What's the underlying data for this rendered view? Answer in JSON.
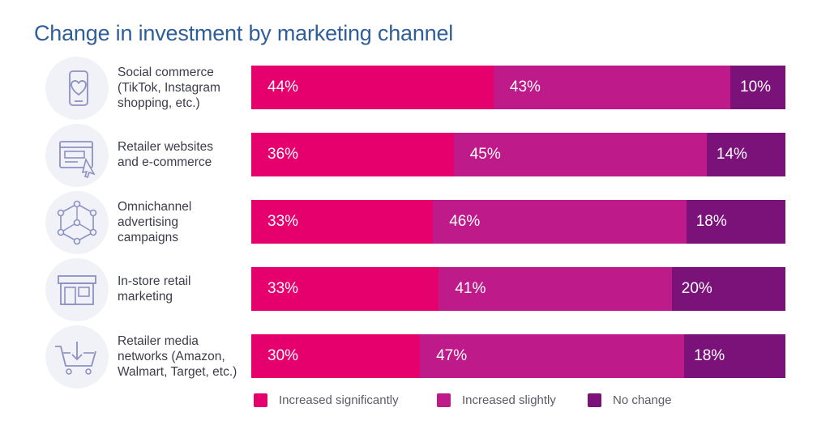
{
  "title": "Change in investment by marketing channel",
  "colors": {
    "increased_significantly": "#e6006e",
    "increased_slightly": "#bf1a8a",
    "no_change": "#7b127a",
    "title": "#2f5f9a",
    "icon_bg": "#f1f2f8",
    "icon_stroke": "#8d90c2"
  },
  "rows": [
    {
      "label": "Social commerce\n(TikTok, Instagram\nshopping, etc.)",
      "icon": "phone-heart-icon"
    },
    {
      "label": "Retailer websites\nand e-commerce",
      "icon": "browser-cursor-icon"
    },
    {
      "label": "Omnichannel\nadvertising\ncampaigns",
      "icon": "network-hexagon-icon"
    },
    {
      "label": "In-store retail\nmarketing",
      "icon": "storefront-icon"
    },
    {
      "label": "Retailer media\nnetworks (Amazon,\nWalmart, Target, etc.)",
      "icon": "shopping-cart-download-icon"
    }
  ],
  "legend": [
    {
      "label": "Increased significantly",
      "color": "#e6006e"
    },
    {
      "label": "Increased slightly",
      "color": "#bf1a8a"
    },
    {
      "label": "No change",
      "color": "#7b127a"
    }
  ],
  "chart_data": {
    "type": "bar",
    "orientation": "horizontal",
    "stacked": true,
    "title": "Change in investment by marketing channel",
    "categories": [
      "Social commerce (TikTok, Instagram shopping, etc.)",
      "Retailer websites and e-commerce",
      "Omnichannel advertising campaigns",
      "In-store retail marketing",
      "Retailer media networks (Amazon, Walmart, Target, etc.)"
    ],
    "series": [
      {
        "name": "Increased significantly",
        "values": [
          44,
          36,
          33,
          33,
          30
        ],
        "labels": [
          "44%",
          "36%",
          "33%",
          "33%",
          "30%"
        ]
      },
      {
        "name": "Increased slightly",
        "values": [
          43,
          45,
          46,
          41,
          47
        ],
        "labels": [
          "43%",
          "45%",
          "46%",
          "41%",
          "47%"
        ]
      },
      {
        "name": "No change",
        "values": [
          10,
          14,
          18,
          20,
          18
        ],
        "labels": [
          "10%",
          "14%",
          "18%",
          "20%",
          "18%"
        ]
      }
    ],
    "legend_position": "bottom",
    "grid": false
  }
}
